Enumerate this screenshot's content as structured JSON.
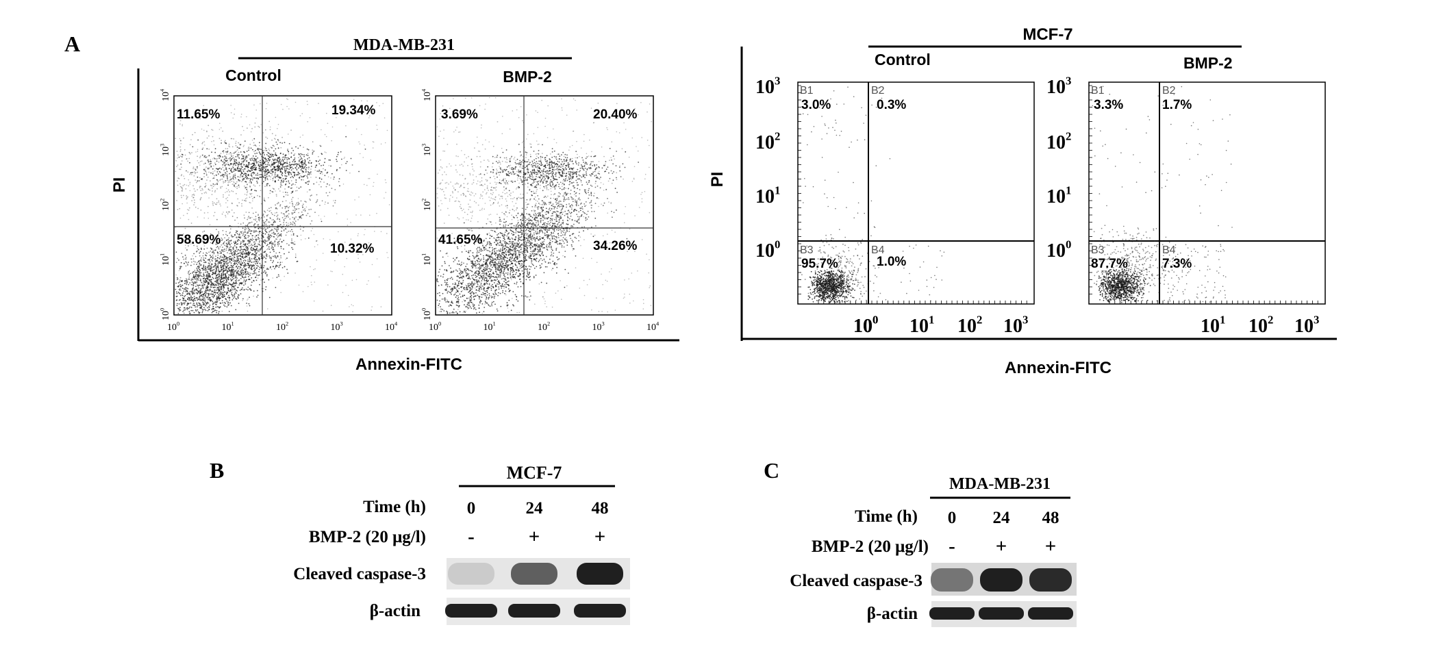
{
  "panel_a": {
    "label": "A",
    "left": {
      "cell_line": "MDA-MB-231",
      "ylabel": "PI",
      "xlabel": "Annexin-FITC",
      "plots": [
        {
          "title": "Control",
          "quadrants": [
            "11.65%",
            "19.34%",
            "58.69%",
            "10.32%"
          ]
        },
        {
          "title": "BMP-2",
          "quadrants": [
            "3.69%",
            "20.40%",
            "41.65%",
            "34.26%"
          ]
        }
      ],
      "x_ticks": [
        "10",
        "10",
        "10",
        "10",
        "10"
      ],
      "x_tick_exps": [
        "0",
        "1",
        "2",
        "3",
        "4"
      ],
      "y_ticks": [
        "10",
        "10",
        "10",
        "10",
        "10"
      ],
      "y_tick_exps": [
        "0",
        "1",
        "2",
        "3",
        "4"
      ]
    },
    "right": {
      "cell_line": "MCF-7",
      "ylabel": "PI",
      "xlabel": "Annexin-FITC",
      "plots": [
        {
          "title": "Control",
          "gates": [
            "B1",
            "B2",
            "B3",
            "B4"
          ],
          "quadrants": [
            "3.0%",
            "0.3%",
            "95.7%",
            "1.0%"
          ]
        },
        {
          "title": "BMP-2",
          "gates": [
            "B1",
            "B2",
            "B3",
            "B4"
          ],
          "quadrants": [
            "3.3%",
            "1.7%",
            "87.7%",
            "7.3%"
          ]
        }
      ],
      "x_ticks": [
        "10",
        "10",
        "10",
        "10"
      ],
      "x_tick_exps": [
        "0",
        "1",
        "2",
        "3"
      ],
      "y_ticks": [
        "10",
        "10",
        "10",
        "10"
      ],
      "y_tick_exps": [
        "3",
        "2",
        "1",
        "0"
      ]
    }
  },
  "panel_b": {
    "label": "B",
    "cell_line": "MCF-7",
    "time_label": "Time (h)",
    "times": [
      "0",
      "24",
      "48"
    ],
    "bmp_label": "BMP-2 (20 μg/l)",
    "bmp": [
      "-",
      "+",
      "+"
    ],
    "row1": "Cleaved caspase-3",
    "row2": "β-actin",
    "caspase_intensity": [
      0.15,
      0.65,
      0.95
    ]
  },
  "panel_c": {
    "label": "C",
    "cell_line": "MDA-MB-231",
    "time_label": "Time (h)",
    "times": [
      "0",
      "24",
      "48"
    ],
    "bmp_label": "BMP-2 (20 μg/l)",
    "bmp": [
      "-",
      "+",
      "+"
    ],
    "row1": "Cleaved caspase-3",
    "row2": "β-actin",
    "caspase_intensity": [
      0.55,
      0.95,
      0.9
    ]
  }
}
